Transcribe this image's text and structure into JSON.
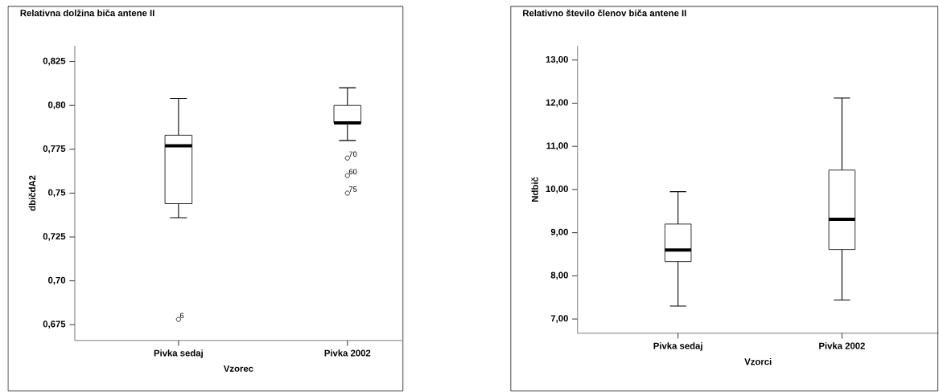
{
  "chart_data": [
    {
      "type": "box",
      "title": "Relativna dolžina biča antene II",
      "xlabel": "Vzorec",
      "ylabel": "dbičdA2",
      "categories": [
        "Pivka sedaj",
        "Pivka 2002"
      ],
      "boxes": [
        {
          "low": 0.736,
          "q1": 0.744,
          "median": 0.777,
          "q3": 0.783,
          "high": 0.804,
          "outliers": [
            0.678
          ]
        },
        {
          "low": 0.78,
          "q1": 0.79,
          "median": 0.79,
          "q3": 0.8,
          "high": 0.81,
          "outliers": [
            0.77,
            0.76,
            0.75
          ]
        }
      ],
      "ylim": [
        0.666,
        0.834
      ],
      "yticks": [
        {
          "value": 0.675,
          "label": "0,675"
        },
        {
          "value": 0.7,
          "label": "0,70"
        },
        {
          "value": 0.725,
          "label": "0,725"
        },
        {
          "value": 0.75,
          "label": "0,75"
        },
        {
          "value": 0.775,
          "label": "0,775"
        },
        {
          "value": 0.8,
          "label": "0,80"
        },
        {
          "value": 0.825,
          "label": "0,825"
        }
      ],
      "annotations": [
        "6",
        "70",
        "60",
        "75"
      ],
      "grid": false
    },
    {
      "type": "box",
      "title": "Relativno število členov biča antene II",
      "xlabel": "Vzorci",
      "ylabel": "Ndbič",
      "categories": [
        "Pivka sedaj",
        "Pivka 2002"
      ],
      "boxes": [
        {
          "low": 7.3,
          "q1": 8.33,
          "median": 8.6,
          "q3": 9.2,
          "high": 9.95
        },
        {
          "low": 7.44,
          "q1": 8.61,
          "median": 9.31,
          "q3": 10.45,
          "high": 12.12
        }
      ],
      "ylim": [
        6.67,
        13.33
      ],
      "yticks": [
        {
          "value": 7,
          "label": "7,00"
        },
        {
          "value": 8,
          "label": "8,00"
        },
        {
          "value": 9,
          "label": "9,00"
        },
        {
          "value": 10,
          "label": "10,00"
        },
        {
          "value": 11,
          "label": "11,00"
        },
        {
          "value": 12,
          "label": "12,00"
        },
        {
          "value": 13,
          "label": "13,00"
        }
      ],
      "grid": false
    }
  ]
}
